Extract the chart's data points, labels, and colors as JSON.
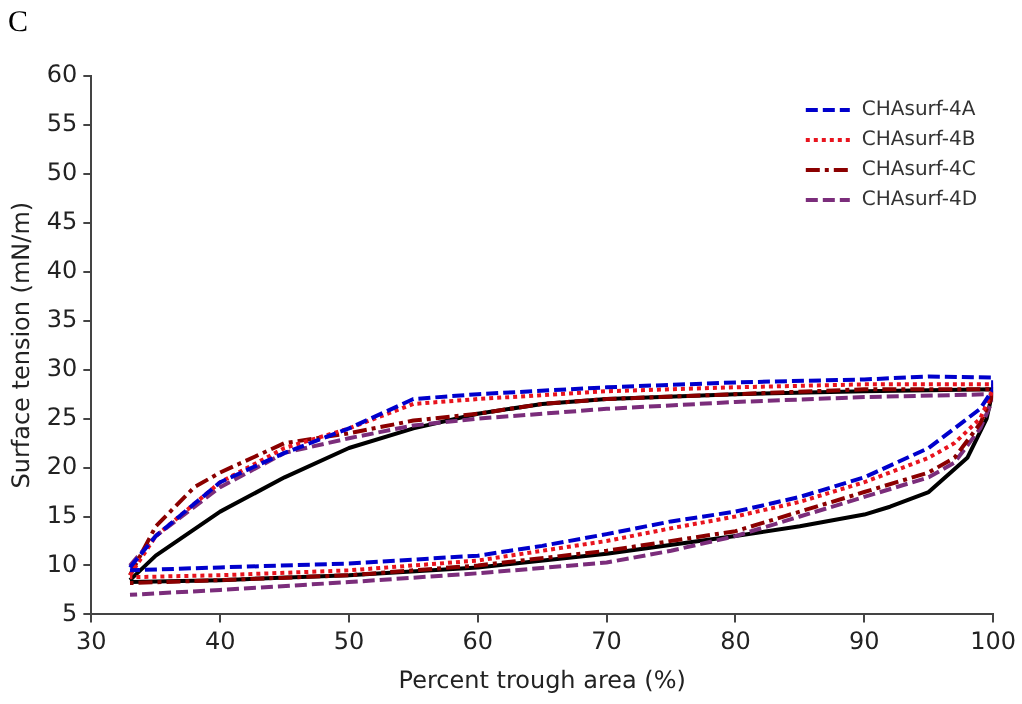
{
  "chart_data": {
    "type": "line",
    "xlabel": "Percent trough area (%)",
    "ylabel": "Surface tension (mN/m)",
    "annotations": [
      "C"
    ],
    "xlim": [
      30,
      100
    ],
    "xticks": [
      30,
      40,
      50,
      60,
      70,
      80,
      90,
      100
    ],
    "ylim": [
      5,
      60
    ],
    "yticks": [
      5,
      10,
      15,
      20,
      25,
      30,
      35,
      40,
      45,
      50,
      55,
      60
    ],
    "grid": false,
    "legend": "top right",
    "marker": "none",
    "series": [
      {
        "name": "CHAsurf-4A",
        "color": "#0000cc",
        "line_style": "dashed",
        "x": [
          33,
          35,
          40,
          45,
          50,
          55,
          60,
          70,
          80,
          90,
          95,
          100,
          100,
          99,
          97,
          95,
          90,
          85,
          80,
          75,
          70,
          65,
          60,
          50,
          40,
          33
        ],
        "values": [
          9.8,
          13,
          18.5,
          21.5,
          24,
          27,
          27.5,
          28.2,
          28.7,
          29,
          29.3,
          29.2,
          28,
          26,
          24,
          22,
          19,
          17,
          15.5,
          14.5,
          13.2,
          12,
          11,
          10.2,
          9.8,
          9.5
        ]
      },
      {
        "name": "CHAsurf-4B",
        "color": "#e8141e",
        "line_style": "dotted",
        "x": [
          33,
          35,
          40,
          45,
          50,
          55,
          60,
          70,
          80,
          90,
          100,
          100,
          99,
          97,
          95,
          90,
          85,
          80,
          75,
          70,
          60,
          50,
          40,
          33
        ],
        "values": [
          9,
          13,
          18.5,
          22,
          24,
          26.5,
          27,
          27.8,
          28.2,
          28.5,
          28.5,
          28,
          25,
          22.5,
          21,
          18.5,
          16.5,
          15,
          13.8,
          12.5,
          10.5,
          9.5,
          9,
          8.8
        ]
      },
      {
        "name": "CHAsurf-4C",
        "color": "#8b0000",
        "line_style": "dashdot",
        "x": [
          33,
          35,
          38,
          40,
          45,
          50,
          55,
          60,
          65,
          70,
          80,
          90,
          100,
          100,
          99,
          97,
          95,
          90,
          85,
          80,
          70,
          60,
          50,
          40,
          33
        ],
        "values": [
          9,
          14,
          18,
          19.5,
          22.5,
          23.5,
          24.8,
          25.5,
          26.5,
          27,
          27.5,
          28,
          28,
          27.5,
          24.5,
          21,
          19.5,
          17.5,
          15.5,
          13.5,
          11.5,
          10,
          9,
          8.5,
          8.2
        ]
      },
      {
        "name": "CHAsurf-4D",
        "color": "#7b2d7b",
        "line_style": "dashed",
        "x": [
          33,
          35,
          40,
          45,
          50,
          55,
          60,
          65,
          70,
          80,
          90,
          100,
          100,
          99,
          97,
          95,
          90,
          85,
          80,
          75,
          70,
          60,
          50,
          40,
          33
        ],
        "values": [
          10,
          13,
          18,
          21.5,
          23,
          24.3,
          25,
          25.5,
          26,
          26.7,
          27.2,
          27.5,
          27,
          24,
          20.5,
          19,
          17,
          15,
          13,
          11.5,
          10.3,
          9.2,
          8.3,
          7.5,
          7
        ]
      },
      {
        "color": "#000000",
        "line_style": "solid",
        "x": [
          33,
          35,
          40,
          45,
          50,
          55,
          60,
          65,
          70,
          80,
          90,
          100,
          99.5,
          98,
          95,
          92,
          90,
          85,
          80,
          70,
          60,
          50,
          40,
          33
        ],
        "values": [
          8.5,
          11,
          15.5,
          19,
          22,
          24,
          25.5,
          26.5,
          27,
          27.5,
          27.8,
          28,
          25,
          21,
          17.5,
          16,
          15.2,
          14,
          13,
          11.2,
          9.8,
          9,
          8.5,
          8.3
        ]
      }
    ]
  }
}
